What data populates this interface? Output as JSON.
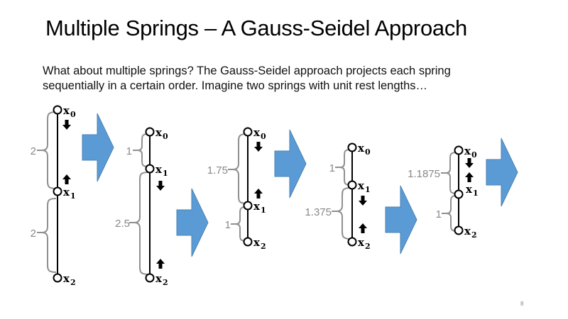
{
  "slide": {
    "title": "Multiple Springs – A Gauss-Seidel Approach",
    "body_lines": [
      "What about multiple springs?  The Gauss-Seidel approach projects each spring",
      "sequentially in a certain order.  Imagine two springs with unit rest lengths…"
    ],
    "page_number": "8"
  },
  "vertex_names": [
    "x0",
    "x1",
    "x2"
  ],
  "stages": [
    {
      "lengths": [
        "2",
        "2"
      ]
    },
    {
      "lengths": [
        "1",
        "2.5"
      ]
    },
    {
      "lengths": [
        "1.75",
        "1"
      ]
    },
    {
      "lengths": [
        "1",
        "1.375"
      ]
    },
    {
      "lengths": [
        "1.1875",
        "1"
      ]
    }
  ],
  "colors": {
    "arrow_fill": "#5b9bd5",
    "brace": "#909090",
    "length_text": "#888888"
  }
}
